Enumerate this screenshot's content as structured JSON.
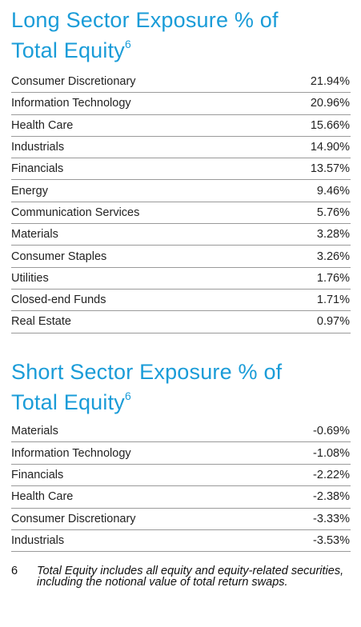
{
  "long": {
    "title": "Long Sector Exposure % of Total Equity",
    "title_line1": "Long Sector Exposure % of",
    "title_line2": "Total Equity",
    "footnote_ref": "6",
    "rows": [
      {
        "sector": "Consumer Discretionary",
        "value": "21.94%"
      },
      {
        "sector": "Information Technology",
        "value": "20.96%"
      },
      {
        "sector": "Health Care",
        "value": "15.66%"
      },
      {
        "sector": "Industrials",
        "value": "14.90%"
      },
      {
        "sector": "Financials",
        "value": "13.57%"
      },
      {
        "sector": "Energy",
        "value": "9.46%"
      },
      {
        "sector": "Communication Services",
        "value": "5.76%"
      },
      {
        "sector": "Materials",
        "value": "3.28%"
      },
      {
        "sector": "Consumer Staples",
        "value": "3.26%"
      },
      {
        "sector": "Utilities",
        "value": "1.76%"
      },
      {
        "sector": "Closed-end Funds",
        "value": "1.71%"
      },
      {
        "sector": "Real Estate",
        "value": "0.97%"
      }
    ]
  },
  "short": {
    "title_line1": "Short Sector Exposure % of",
    "title_line2": "Total Equity",
    "footnote_ref": "6",
    "rows": [
      {
        "sector": "Materials",
        "value": "-0.69%"
      },
      {
        "sector": "Information Technology",
        "value": "-1.08%"
      },
      {
        "sector": "Financials",
        "value": "-2.22%"
      },
      {
        "sector": "Health Care",
        "value": "-2.38%"
      },
      {
        "sector": "Consumer Discretionary",
        "value": "-3.33%"
      },
      {
        "sector": "Industrials",
        "value": "-3.53%"
      }
    ]
  },
  "footnote": {
    "number": "6",
    "text": "Total Equity includes all equity and equity-related securities, including the notional value of total return swaps."
  },
  "colors": {
    "title": "#1a9cd8",
    "rule": "#9a9a9a",
    "text": "#222222"
  }
}
